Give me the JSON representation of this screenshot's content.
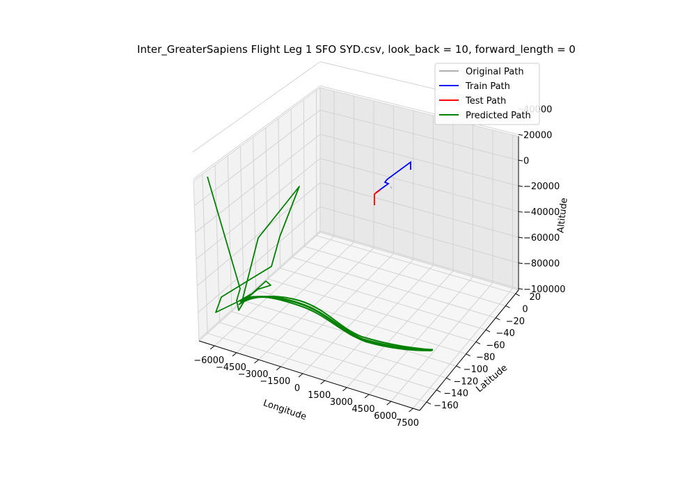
{
  "chart_data": {
    "type": "line3d",
    "title": "Inter_GreaterSapiens Flight Leg 1 SFO SYD.csv, look_back = 10, forward_length = 0",
    "xlabel": "Longitude",
    "ylabel": "Latitude",
    "zlabel": "Altitude",
    "grid": true,
    "legend_position": "top-right",
    "xticks": [
      "−6000",
      "−4500",
      "−3000",
      "−1500",
      "0",
      "1500",
      "3000",
      "4500",
      "6000",
      "7500"
    ],
    "yticks": [
      "−160",
      "−140",
      "−120",
      "−100",
      "−80",
      "−60",
      "−40",
      "−20",
      "0",
      "20"
    ],
    "zticks": [
      "−100000",
      "−80000",
      "−60000",
      "−40000",
      "−20000",
      "0",
      "20000",
      "40000"
    ],
    "xlim": [
      -6500,
      8000
    ],
    "ylim": [
      -165,
      30
    ],
    "zlim": [
      -105000,
      50000
    ],
    "series": [
      {
        "name": "Original Path",
        "color": "#b0b0b0"
      },
      {
        "name": "Train Path",
        "color": "#0000ff"
      },
      {
        "name": "Test Path",
        "color": "#ff0000"
      },
      {
        "name": "Predicted Path",
        "color": "#008000"
      }
    ]
  }
}
